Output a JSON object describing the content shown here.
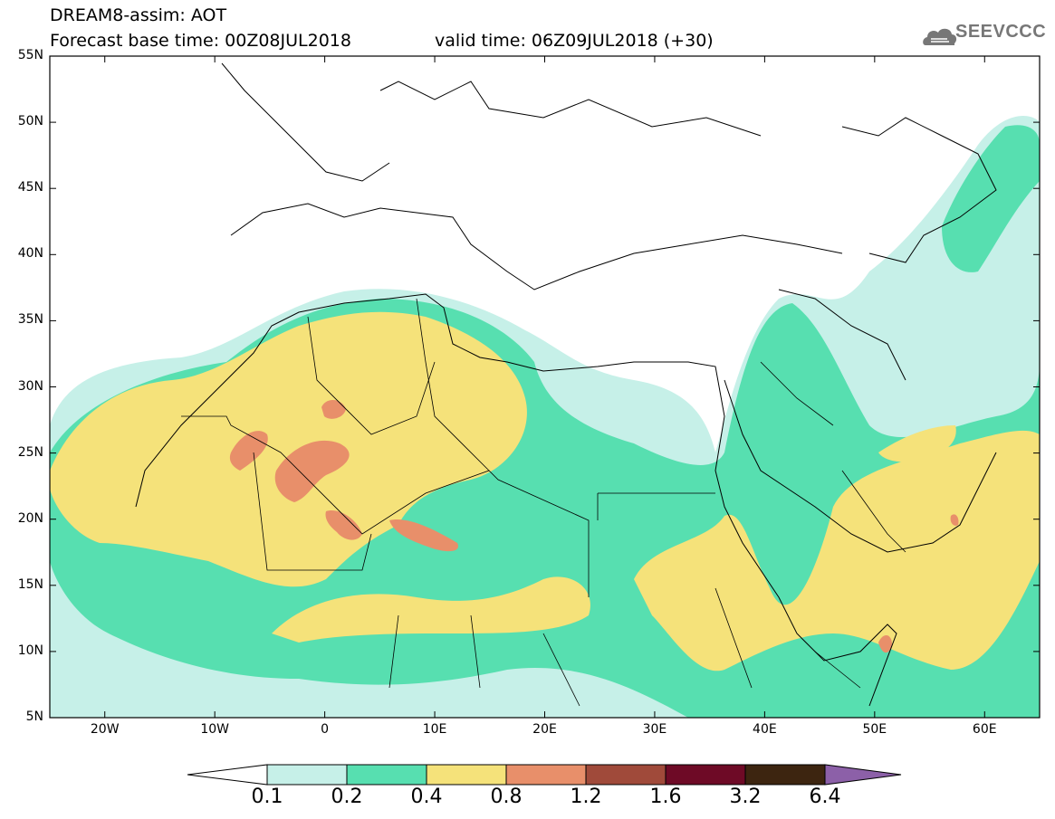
{
  "header": {
    "title": "DREAM8-assim: AOT",
    "forecast_base": "Forecast base time: 00Z08JUL2018",
    "valid_time": "valid time: 06Z09JUL2018 (+30)"
  },
  "logo": {
    "text": "SEEVCCC",
    "icon": "cloud-icon"
  },
  "map": {
    "lat_labels": [
      "55N",
      "50N",
      "45N",
      "40N",
      "35N",
      "30N",
      "25N",
      "20N",
      "15N",
      "10N",
      "5N"
    ],
    "lon_labels": [
      "20W",
      "10W",
      "0",
      "10E",
      "20E",
      "30E",
      "40E",
      "50E",
      "60E"
    ],
    "lon_range": [
      -25,
      65
    ],
    "lat_range": [
      5,
      55
    ]
  },
  "colorbar": {
    "labels": [
      "0.1",
      "0.2",
      "0.4",
      "0.8",
      "1.2",
      "1.6",
      "3.2",
      "6.4"
    ],
    "colors": [
      "#ffffff",
      "#c6f0e8",
      "#57dfb0",
      "#f5e27a",
      "#e88f6a",
      "#a04a3a",
      "#6e0a26",
      "#3d2510",
      "#8c60a8"
    ]
  }
}
